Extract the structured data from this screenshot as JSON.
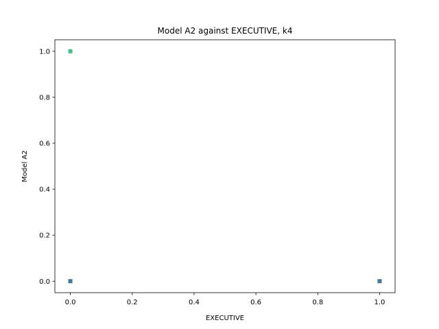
{
  "chart_data": {
    "type": "scatter",
    "title": "Model A2 against EXECUTIVE, k4",
    "xlabel": "EXECUTIVE",
    "ylabel": "Model A2",
    "xlim": [
      -0.05,
      1.05
    ],
    "ylim": [
      -0.05,
      1.05
    ],
    "xticks": [
      0.0,
      0.2,
      0.4,
      0.6,
      0.8,
      1.0
    ],
    "yticks": [
      0.0,
      0.2,
      0.4,
      0.6,
      0.8,
      1.0
    ],
    "xtick_labels": [
      "0.0",
      "0.2",
      "0.4",
      "0.6",
      "0.8",
      "1.0"
    ],
    "ytick_labels": [
      "0.0",
      "0.2",
      "0.4",
      "0.6",
      "0.8",
      "1.0"
    ],
    "grid": false,
    "points": [
      {
        "x": 0.0,
        "y": 1.0,
        "color": "#35b779"
      },
      {
        "x": 0.0,
        "y": 0.0,
        "color": "#31688e"
      },
      {
        "x": 1.0,
        "y": 0.0,
        "color": "#31688e"
      }
    ]
  }
}
